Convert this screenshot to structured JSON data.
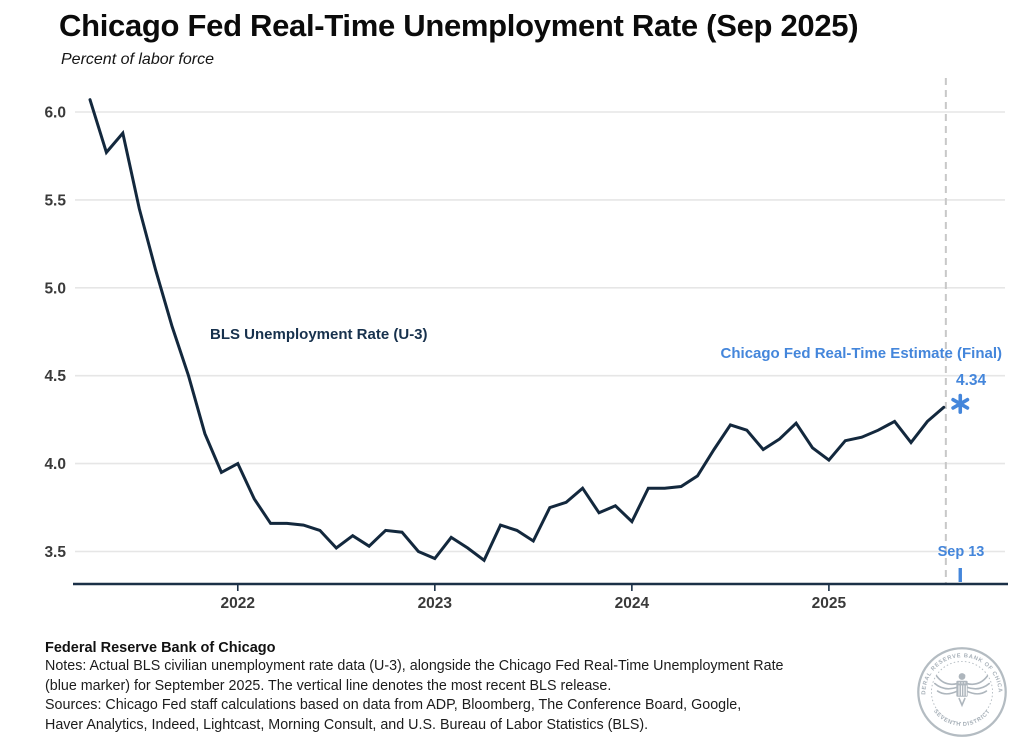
{
  "title": "Chicago Fed Real-Time Unemployment Rate (Sep 2025)",
  "subtitle": "Percent of labor force",
  "annotations": {
    "bls_series_label": "BLS Unemployment Rate (U-3)",
    "estimate_series_label": "Chicago Fed Real-Time Estimate (Final)",
    "estimate_value_label": "4.34",
    "release_date_label": "Sep 13"
  },
  "footer": {
    "org": "Federal Reserve Bank of Chicago",
    "notes": "Notes: Actual BLS civilian unemployment rate data (U-3), alongside the Chicago Fed Real-Time Unemployment Rate\n(blue marker) for September 2025. The vertical line denotes the most recent BLS release.",
    "sources": "Sources: Chicago Fed staff calculations based on data from ADP, Bloomberg, The Conference Board, Google,\nHaver Analytics, Indeed, Lightcast, Morning Consult, and U.S. Bureau of Labor Statistics (BLS)."
  },
  "seal": {
    "top_text": "FEDERAL RESERVE BANK OF CHICAGO",
    "bottom_text": "SEVENTH DISTRICT"
  },
  "colors": {
    "line_navy": "#13283d",
    "estimate_blue": "#4486db",
    "grid_gray": "#e6e6e6",
    "dashed_gray": "#c8c8c8",
    "axis_navy": "#1b3047",
    "tick_label_gray": "#3a3a3a"
  },
  "chart_data": {
    "type": "line",
    "title": "Chicago Fed Real-Time Unemployment Rate (Sep 2025)",
    "ylabel": "Percent of labor force",
    "ylim": [
      3.3,
      6.15
    ],
    "y_ticks": [
      3.5,
      4.0,
      4.5,
      5.0,
      5.5,
      6.0
    ],
    "x_ticks": [
      "2022",
      "2023",
      "2024",
      "2025"
    ],
    "x_tick_month_index": [
      9,
      21,
      33,
      45
    ],
    "start_month": "2021-04",
    "frequency": "monthly",
    "grid": true,
    "series": [
      {
        "name": "BLS Unemployment Rate (U-3)",
        "color": "#13283d",
        "values": [
          6.07,
          5.77,
          5.88,
          5.45,
          5.1,
          4.78,
          4.5,
          4.17,
          3.95,
          4.0,
          3.8,
          3.66,
          3.66,
          3.65,
          3.62,
          3.52,
          3.59,
          3.53,
          3.62,
          3.61,
          3.5,
          3.46,
          3.58,
          3.52,
          3.45,
          3.65,
          3.62,
          3.56,
          3.75,
          3.78,
          3.86,
          3.72,
          3.76,
          3.67,
          3.86,
          3.86,
          3.87,
          3.93,
          4.08,
          4.22,
          4.19,
          4.08,
          4.14,
          4.23,
          4.09,
          4.02,
          4.13,
          4.15,
          4.19,
          4.24,
          4.12,
          4.24,
          4.32
        ]
      }
    ],
    "estimate_point": {
      "name": "Chicago Fed Real-Time Estimate (Final)",
      "month": "2025-09",
      "value": 4.34,
      "marker": "asterisk",
      "color": "#4486db"
    },
    "release_line": {
      "style": "dashed",
      "month": "2025-08",
      "date_label": "Sep 13"
    }
  }
}
